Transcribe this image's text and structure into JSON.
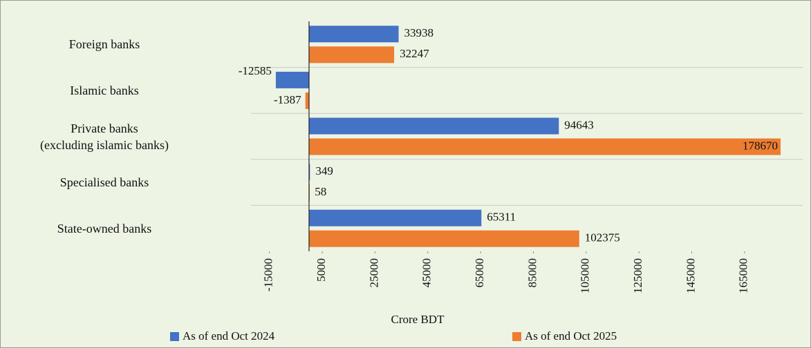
{
  "chart_data": {
    "type": "barh",
    "categories": [
      "Foreign banks",
      "Islamic banks",
      "Private banks\n(excluding islamic banks)",
      "Specialised banks",
      "State-owned banks"
    ],
    "series": [
      {
        "name": "As of end Oct 2024",
        "color": "#4472c4",
        "values": [
          33938,
          -12585,
          94643,
          349,
          65311
        ]
      },
      {
        "name": "As of end Oct 2025",
        "color": "#ed7d31",
        "values": [
          32247,
          -1387,
          178670,
          58,
          102375
        ]
      }
    ],
    "xlabel": "Crore BDT",
    "xlim": [
      -22000,
      186000
    ],
    "xticks": [
      -15000,
      5000,
      25000,
      45000,
      65000,
      85000,
      105000,
      125000,
      145000,
      165000
    ],
    "grid": true
  }
}
